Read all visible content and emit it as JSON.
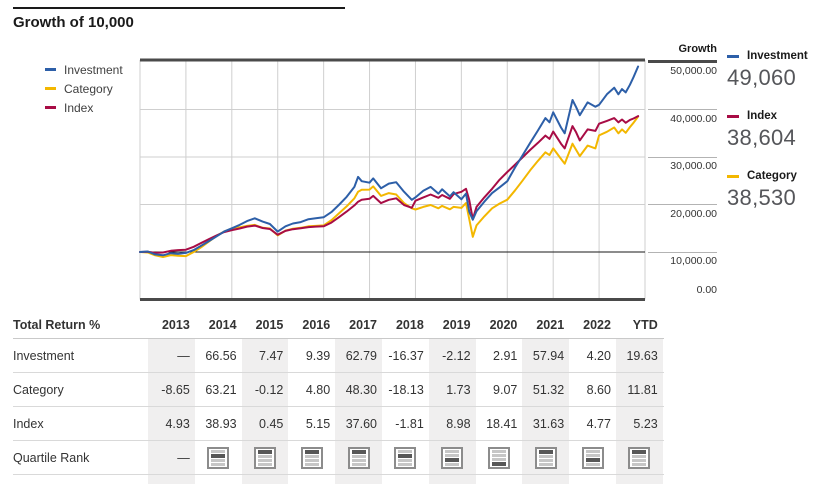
{
  "title": "Growth of 10,000",
  "chart": {
    "axis_title": "Growth",
    "y_ticks": [
      "50,000.00",
      "40,000.00",
      "30,000.00",
      "20,000.00",
      "10,000.00",
      "0.00"
    ],
    "legend": [
      {
        "label": "Investment",
        "color": "#2d5fa8"
      },
      {
        "label": "Category",
        "color": "#f3b700"
      },
      {
        "label": "Index",
        "color": "#a80c45"
      }
    ],
    "summary": [
      {
        "label": "Investment",
        "value": "49,060",
        "color": "#2d5fa8"
      },
      {
        "label": "Index",
        "value": "38,604",
        "color": "#a80c45"
      },
      {
        "label": "Category",
        "value": "38,530",
        "color": "#f3b700"
      }
    ]
  },
  "chart_data": {
    "type": "line",
    "title": "Growth of 10,000",
    "ylabel": "Growth",
    "ylim": [
      0,
      52000
    ],
    "xlim": [
      2013,
      2024
    ],
    "grid": true,
    "legend_position": "left",
    "y_tick_values": [
      50000,
      40000,
      30000,
      20000,
      10000,
      0
    ],
    "x_gridlines": [
      2014,
      2015,
      2016,
      2017,
      2018,
      2019,
      2020,
      2021,
      2022,
      2023
    ],
    "baseline_value": 10000,
    "x": [
      2013.0,
      2013.17,
      2013.33,
      2013.5,
      2013.67,
      2013.83,
      2014.0,
      2014.17,
      2014.33,
      2014.5,
      2014.67,
      2014.83,
      2015.0,
      2015.17,
      2015.33,
      2015.5,
      2015.67,
      2015.83,
      2016.0,
      2016.17,
      2016.33,
      2016.5,
      2016.67,
      2016.83,
      2017.0,
      2017.17,
      2017.33,
      2017.5,
      2017.67,
      2017.75,
      2017.83,
      2018.0,
      2018.08,
      2018.25,
      2018.42,
      2018.58,
      2018.75,
      2018.92,
      2019.0,
      2019.17,
      2019.33,
      2019.5,
      2019.58,
      2019.75,
      2019.83,
      2020.0,
      2020.1,
      2020.17,
      2020.25,
      2020.33,
      2020.5,
      2020.67,
      2020.83,
      2021.0,
      2021.17,
      2021.33,
      2021.5,
      2021.67,
      2021.83,
      2021.92,
      2022.0,
      2022.17,
      2022.25,
      2022.42,
      2022.5,
      2022.58,
      2022.75,
      2022.92,
      2023.0,
      2023.17,
      2023.33,
      2023.42,
      2023.5,
      2023.58,
      2023.67,
      2023.75,
      2023.85
    ],
    "series": [
      {
        "name": "Category",
        "color": "#f3b700",
        "final_value": 38530,
        "values": [
          10000,
          9900,
          9300,
          8950,
          9350,
          9200,
          9135,
          10000,
          11000,
          12200,
          13400,
          14300,
          14910,
          15200,
          15500,
          15700,
          15100,
          14950,
          13500,
          14500,
          14900,
          15100,
          15400,
          15500,
          15610,
          16700,
          18100,
          19600,
          21300,
          22700,
          23100,
          23140,
          23800,
          21800,
          22400,
          22100,
          20300,
          19200,
          18950,
          19500,
          19900,
          19200,
          19700,
          19000,
          19500,
          19280,
          20300,
          17000,
          13200,
          15600,
          17500,
          19200,
          20200,
          21020,
          23000,
          25000,
          27200,
          29200,
          31000,
          30400,
          31810,
          29600,
          28600,
          32800,
          31500,
          30200,
          32400,
          31800,
          34550,
          35300,
          36200,
          35000,
          35800,
          35100,
          36300,
          37200,
          38530
        ]
      },
      {
        "name": "Index",
        "color": "#a80c45",
        "final_value": 38604,
        "values": [
          10000,
          10050,
          9800,
          9900,
          10250,
          10400,
          10490,
          11100,
          11900,
          12700,
          13500,
          14200,
          14580,
          14950,
          15350,
          15550,
          15050,
          14850,
          13650,
          14450,
          14800,
          15000,
          15250,
          15350,
          15400,
          16200,
          17300,
          18500,
          19800,
          20600,
          21000,
          21190,
          21800,
          20300,
          21000,
          21300,
          19900,
          19300,
          20800,
          21500,
          22100,
          21400,
          22000,
          21200,
          22200,
          22670,
          23300,
          21000,
          16900,
          19500,
          21500,
          23300,
          25200,
          26850,
          28400,
          29900,
          31500,
          33000,
          34500,
          33800,
          35340,
          32800,
          31800,
          36500,
          35200,
          33500,
          35800,
          35500,
          37020,
          37600,
          38200,
          37300,
          37900,
          37200,
          37800,
          38100,
          38604
        ]
      },
      {
        "name": "Investment",
        "color": "#2d5fa8",
        "final_value": 49060,
        "values": [
          10000,
          10100,
          9500,
          9300,
          9750,
          9600,
          9800,
          10400,
          11300,
          12300,
          13300,
          14300,
          15000,
          15700,
          16500,
          17100,
          16400,
          15900,
          14300,
          15400,
          16000,
          16300,
          16900,
          17100,
          17300,
          18400,
          19900,
          21600,
          23700,
          25800,
          24900,
          24600,
          25500,
          23400,
          24400,
          24700,
          22700,
          21000,
          21500,
          22900,
          23700,
          22300,
          23200,
          21700,
          22600,
          21100,
          22300,
          18500,
          16800,
          18600,
          20600,
          22400,
          23600,
          24900,
          27800,
          30300,
          33000,
          35600,
          38200,
          37300,
          39400,
          36200,
          35000,
          42000,
          40500,
          38800,
          41500,
          40600,
          41000,
          43200,
          44600,
          43200,
          44300,
          43600,
          45200,
          46800,
          49060
        ]
      }
    ]
  },
  "table": {
    "header_label": "Total Return %",
    "columns": [
      "2013",
      "2014",
      "2015",
      "2016",
      "2017",
      "2018",
      "2019",
      "2020",
      "2021",
      "2022",
      "YTD"
    ],
    "shaded_columns": [
      0,
      2,
      4,
      6,
      8,
      10
    ],
    "rows": [
      {
        "label": "Investment",
        "values": [
          "—",
          "66.56",
          "7.47",
          "9.39",
          "62.79",
          "-16.37",
          "-2.12",
          "2.91",
          "57.94",
          "4.20",
          "19.63"
        ]
      },
      {
        "label": "Category",
        "values": [
          "-8.65",
          "63.21",
          "-0.12",
          "4.80",
          "48.30",
          "-18.13",
          "1.73",
          "9.07",
          "51.32",
          "8.60",
          "11.81"
        ]
      },
      {
        "label": "Index",
        "values": [
          "4.93",
          "38.93",
          "0.45",
          "5.15",
          "37.60",
          "-1.81",
          "8.98",
          "18.41",
          "31.63",
          "4.77",
          "5.23"
        ]
      },
      {
        "label": "Quartile Rank",
        "quartiles": [
          null,
          2,
          1,
          1,
          1,
          2,
          3,
          4,
          1,
          3,
          1
        ]
      }
    ]
  }
}
